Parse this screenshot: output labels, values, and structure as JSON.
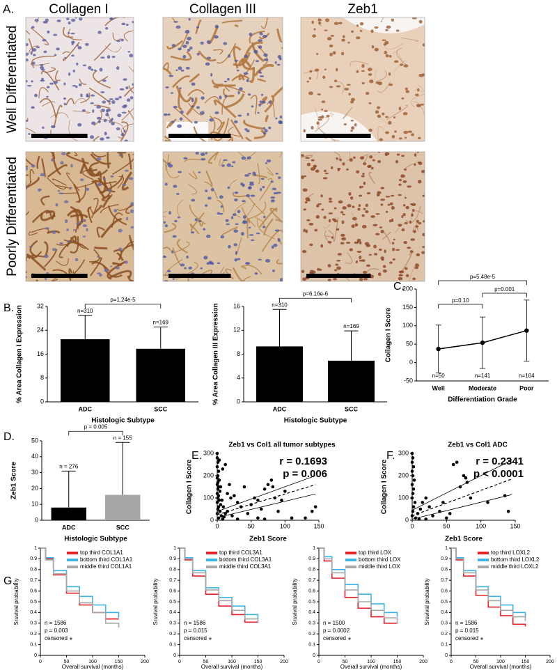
{
  "panel_a": {
    "label": "A.",
    "columns": [
      "Collagen I",
      "Collagen III",
      "Zeb1"
    ],
    "rows": [
      "Well Differentiated",
      "Poorly Differentiated"
    ]
  },
  "chart_data": [
    {
      "panel_label": "B.",
      "type": "bar",
      "categories": [
        "ADC",
        "SCC"
      ],
      "values": [
        21,
        17.8
      ],
      "errors": [
        8,
        7.3
      ],
      "n_labels": [
        "n=310",
        "n=169"
      ],
      "p_label": "p=1.24e-5",
      "colors": [
        "#000000",
        "#000000"
      ],
      "ylabel": "% Area Collagen I Expression",
      "xlabel": "Histologic Subtype",
      "ylim": [
        0,
        32
      ],
      "yticks": [
        0,
        8,
        16,
        24,
        32
      ]
    },
    {
      "type": "bar",
      "categories": [
        "ADC",
        "SCC"
      ],
      "values": [
        9.3,
        6.9
      ],
      "errors": [
        6.2,
        5.0
      ],
      "n_labels": [
        "n=310",
        "n=169"
      ],
      "p_label": "p=6.16e-6",
      "colors": [
        "#000000",
        "#000000"
      ],
      "ylabel": "% Area Collagen III Expression",
      "xlabel": "Histologic Subtype",
      "ylim": [
        0,
        16
      ],
      "yticks": [
        0,
        4,
        8,
        12,
        16
      ]
    },
    {
      "panel_label": "C.",
      "type": "line",
      "categories": [
        "Well",
        "Moderate",
        "Poor"
      ],
      "values": [
        37,
        54,
        87
      ],
      "errors": [
        65,
        70,
        83
      ],
      "n_labels": [
        "n=50",
        "n=141",
        "n=104"
      ],
      "p_labels": [
        "p=5.48e-5",
        "p=0.10",
        "p=0.001"
      ],
      "color": "#000000",
      "ylabel": "Collagen I Score",
      "xlabel": "Differentiation Grade",
      "ylim": [
        -50,
        200
      ],
      "yticks": [
        -50,
        0,
        50,
        100,
        150,
        200
      ]
    },
    {
      "panel_label": "D.",
      "type": "bar",
      "categories": [
        "ADC",
        "SCC"
      ],
      "values": [
        8,
        16
      ],
      "errors": [
        23,
        33
      ],
      "n_labels": [
        "n = 276",
        "n = 155"
      ],
      "p_label": "p = 0.005",
      "colors": [
        "#000000",
        "#a6a6a6"
      ],
      "ylabel": "Zeb1 Score",
      "xlabel": "Histologic Subtype",
      "ylim": [
        0,
        50
      ],
      "yticks": [
        0,
        10,
        20,
        30,
        40,
        50
      ]
    },
    {
      "panel_label": "E.",
      "type": "scatter",
      "title": "Zeb1 vs Col1 all tumor subtypes",
      "xlabel": "Zeb1 Score",
      "ylabel": "Collagen I Score",
      "annotations": [
        "r = 0.1693",
        "p = 0.006"
      ],
      "color": "#000000",
      "x": [
        0,
        0,
        1,
        0,
        2,
        1,
        0,
        3,
        1,
        0,
        2,
        1,
        4,
        0,
        2,
        1,
        3,
        0,
        5,
        2,
        1,
        4,
        0,
        6,
        2,
        8,
        10,
        12,
        5,
        7,
        9,
        15,
        18,
        20,
        22,
        25,
        30,
        35,
        40,
        45,
        50,
        55,
        60,
        65,
        70,
        75,
        80,
        82,
        85,
        90,
        95,
        100,
        110,
        130,
        140,
        145,
        30,
        60,
        70,
        15,
        8,
        12,
        3
      ],
      "values": [
        300,
        280,
        260,
        240,
        220,
        200,
        190,
        180,
        170,
        160,
        150,
        140,
        130,
        120,
        110,
        100,
        90,
        80,
        70,
        60,
        50,
        40,
        30,
        20,
        10,
        5,
        15,
        30,
        150,
        90,
        60,
        40,
        160,
        100,
        20,
        110,
        80,
        60,
        150,
        30,
        70,
        100,
        90,
        50,
        140,
        160,
        180,
        150,
        100,
        40,
        90,
        130,
        10,
        10,
        40,
        60,
        5,
        10,
        5,
        120,
        230,
        250,
        270
      ],
      "fit": {
        "x": [
          0,
          145
        ],
        "y": [
          25,
          160
        ]
      },
      "band": [
        {
          "x": [
            0,
            145
          ],
          "y": [
            40,
            200
          ]
        },
        {
          "x": [
            0,
            145
          ],
          "y": [
            12,
            118
          ]
        }
      ],
      "xlim": [
        0,
        150
      ],
      "ylim": [
        0,
        300
      ],
      "xticks": [
        0,
        50,
        100,
        150
      ],
      "yticks": [
        0,
        100,
        200,
        300
      ]
    },
    {
      "panel_label": "F.",
      "type": "scatter",
      "title": "Zeb1 vs Col1 ADC",
      "xlabel": "Zeb1 Score",
      "ylabel": "Collagen I Score",
      "annotations": [
        "r = 0.2341",
        "p < 0.0001"
      ],
      "color": "#000000",
      "x": [
        0,
        1,
        0,
        2,
        0,
        1,
        3,
        0,
        2,
        1,
        0,
        4,
        2,
        1,
        0,
        5,
        8,
        10,
        12,
        15,
        20,
        25,
        30,
        40,
        45,
        55,
        60,
        65,
        70,
        75,
        78,
        80,
        85,
        110,
        135,
        140,
        20,
        50
      ],
      "values": [
        300,
        280,
        260,
        240,
        220,
        200,
        180,
        160,
        140,
        120,
        100,
        80,
        60,
        40,
        20,
        10,
        30,
        5,
        50,
        80,
        100,
        60,
        20,
        40,
        80,
        30,
        250,
        260,
        150,
        200,
        190,
        170,
        100,
        80,
        110,
        40,
        5,
        10
      ],
      "fit": {
        "x": [
          0,
          145
        ],
        "y": [
          20,
          185
        ]
      },
      "band": [
        {
          "x": [
            0,
            145
          ],
          "y": [
            45,
            270
          ]
        },
        {
          "x": [
            0,
            145
          ],
          "y": [
            5,
            115
          ]
        }
      ],
      "xlim": [
        0,
        150
      ],
      "ylim": [
        0,
        300
      ],
      "xticks": [
        0,
        50,
        100,
        150
      ],
      "yticks": [
        0,
        100,
        200,
        300
      ]
    },
    {
      "panel_label": "G.",
      "type": "step",
      "ylabel": "Sruvival probability",
      "xlabel": "Overall survival (months)",
      "annotations": [
        "n = 1586",
        "p = 0.003",
        "censored"
      ],
      "x": [
        0,
        10,
        25,
        50,
        75,
        100,
        125,
        150
      ],
      "series": [
        {
          "name": "top third COL1A1",
          "color": "#e8202a",
          "values": [
            1,
            0.9,
            0.75,
            0.58,
            0.47,
            0.4,
            0.34,
            0.34
          ]
        },
        {
          "name": "bottom third COL1A1",
          "color": "#3cb4e5",
          "values": [
            1,
            0.91,
            0.79,
            0.64,
            0.55,
            0.47,
            0.4,
            0.35
          ]
        },
        {
          "name": "middle third COL1A1",
          "color": "#a8a8a8",
          "values": [
            1,
            0.89,
            0.76,
            0.6,
            0.49,
            0.4,
            0.3,
            0.26
          ]
        }
      ],
      "xlim": [
        0,
        200
      ],
      "ylim": [
        0,
        1
      ],
      "xticks": [
        0,
        50,
        100,
        150,
        200
      ],
      "yticks": [
        0,
        0.1,
        0.2,
        0.3,
        0.4,
        0.5,
        0.6,
        0.7,
        0.8,
        0.9,
        1
      ]
    },
    {
      "type": "step",
      "ylabel": "Sruvival probability",
      "xlabel": "Overall survival (months)",
      "annotations": [
        "n = 1586",
        "p = 0.015",
        "censored"
      ],
      "x": [
        0,
        10,
        25,
        50,
        75,
        100,
        125,
        150
      ],
      "series": [
        {
          "name": "top third COL3A1",
          "color": "#e8202a",
          "values": [
            1,
            0.89,
            0.74,
            0.57,
            0.46,
            0.38,
            0.31,
            0.31
          ]
        },
        {
          "name": "bottom third COL3A1",
          "color": "#3cb4e5",
          "values": [
            1,
            0.91,
            0.79,
            0.63,
            0.54,
            0.46,
            0.38,
            0.33
          ]
        },
        {
          "name": "middle third COL3A1",
          "color": "#a8a8a8",
          "values": [
            1,
            0.9,
            0.77,
            0.61,
            0.51,
            0.42,
            0.34,
            0.3
          ]
        }
      ],
      "xlim": [
        0,
        200
      ],
      "ylim": [
        0,
        1
      ],
      "xticks": [
        0,
        50,
        100,
        150,
        200
      ],
      "yticks": [
        0,
        0.1,
        0.2,
        0.3,
        0.4,
        0.5,
        0.6,
        0.7,
        0.8,
        0.9,
        1
      ]
    },
    {
      "type": "step",
      "ylabel": "Sruvival probability",
      "xlabel": "Overall survival (months)",
      "annotations": [
        "n = 1500",
        "p = 0.0002",
        "censored"
      ],
      "x": [
        0,
        10,
        25,
        50,
        75,
        100,
        125,
        150
      ],
      "series": [
        {
          "name": "top third LOX",
          "color": "#e8202a",
          "values": [
            1,
            0.88,
            0.72,
            0.54,
            0.44,
            0.36,
            0.3,
            0.3
          ]
        },
        {
          "name": "bottom third LOX",
          "color": "#3cb4e5",
          "values": [
            1,
            0.92,
            0.8,
            0.66,
            0.57,
            0.48,
            0.4,
            0.36
          ]
        },
        {
          "name": "middle third LOX",
          "color": "#a8a8a8",
          "values": [
            1,
            0.9,
            0.77,
            0.61,
            0.5,
            0.42,
            0.35,
            0.3
          ]
        }
      ],
      "xlim": [
        0,
        200
      ],
      "ylim": [
        0,
        1
      ],
      "xticks": [
        0,
        50,
        100,
        150,
        200
      ],
      "yticks": [
        0,
        0.1,
        0.2,
        0.3,
        0.4,
        0.5,
        0.6,
        0.7,
        0.8,
        0.9,
        1
      ]
    },
    {
      "type": "step",
      "ylabel": "Sruvival probability",
      "xlabel": "Overall survival (months)",
      "annotations": [
        "n = 1586",
        "p = 0.015",
        "censored"
      ],
      "x": [
        0,
        10,
        25,
        50,
        75,
        100,
        125,
        150
      ],
      "series": [
        {
          "name": "top third LOXL2",
          "color": "#e8202a",
          "values": [
            1,
            0.89,
            0.74,
            0.56,
            0.45,
            0.37,
            0.29,
            0.27
          ]
        },
        {
          "name": "bottom third LOXL2",
          "color": "#3cb4e5",
          "values": [
            1,
            0.91,
            0.79,
            0.64,
            0.55,
            0.47,
            0.4,
            0.36
          ]
        },
        {
          "name": "middle third LOXL2",
          "color": "#a8a8a8",
          "values": [
            1,
            0.9,
            0.77,
            0.61,
            0.51,
            0.42,
            0.36,
            0.32
          ]
        }
      ],
      "xlim": [
        0,
        200
      ],
      "ylim": [
        0,
        1
      ],
      "xticks": [
        0,
        50,
        100,
        150,
        200
      ],
      "yticks": [
        0,
        0.1,
        0.2,
        0.3,
        0.4,
        0.5,
        0.6,
        0.7,
        0.8,
        0.9,
        1
      ]
    }
  ]
}
